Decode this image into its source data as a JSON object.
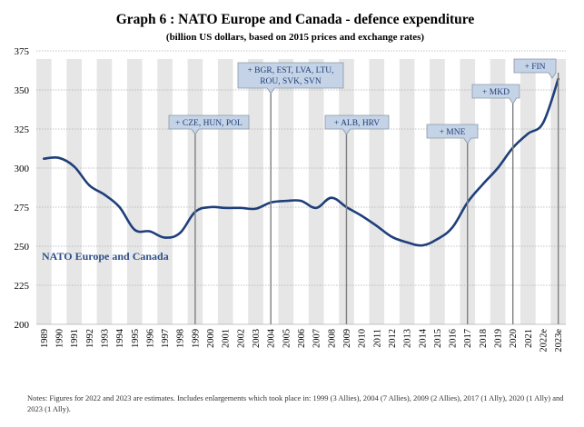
{
  "chart_data": {
    "type": "line",
    "title": "Graph 6 : NATO Europe and Canada - defence expenditure",
    "subtitle": "(billion US dollars, based on 2015 prices and exchange rates)",
    "xlabel": "",
    "ylabel": "",
    "ylim": [
      200,
      375
    ],
    "yticks": [
      "200",
      "225",
      "250",
      "275",
      "300",
      "325",
      "350",
      "375"
    ],
    "categories": [
      "1989",
      "1990",
      "1991",
      "1992",
      "1993",
      "1994",
      "1995",
      "1996",
      "1997",
      "1998",
      "1999",
      "2000",
      "2001",
      "2002",
      "2003",
      "2004",
      "2005",
      "2006",
      "2007",
      "2008",
      "2009",
      "2010",
      "2011",
      "2012",
      "2013",
      "2014",
      "2015",
      "2016",
      "2017",
      "2018",
      "2019",
      "2020",
      "2021",
      "2022e",
      "2023e"
    ],
    "series": [
      {
        "name": "NATO Europe and Canada",
        "color": "#1f3f7a",
        "values": [
          306,
          306.5,
          301,
          289,
          283,
          275,
          260.5,
          259.5,
          255.5,
          258.5,
          272,
          275,
          274.5,
          274.5,
          274,
          278,
          279,
          279,
          274.5,
          281,
          275,
          269.5,
          263,
          256,
          252.5,
          250.5,
          254.5,
          262,
          278,
          289.5,
          300,
          313,
          322,
          329,
          357
        ]
      }
    ],
    "annotations": [
      {
        "lines": [
          "+ CZE, HUN, POL"
        ],
        "year": "1999"
      },
      {
        "lines": [
          "+ BGR, EST, LVA, LTU,",
          "ROU, SVK, SVN"
        ],
        "year": "2004"
      },
      {
        "lines": [
          "+ ALB, HRV"
        ],
        "year": "2009"
      },
      {
        "lines": [
          "+ MNE"
        ],
        "year": "2017"
      },
      {
        "lines": [
          "+ MKD"
        ],
        "year": "2020"
      },
      {
        "lines": [
          "+ FIN"
        ],
        "year": "2023e"
      }
    ],
    "grid": true
  },
  "note": "Notes: Figures for 2022 and 2023 are estimates. Includes enlargements which took place in: 1999 (3 Allies), 2004 (7 Allies), 2009 (2 Allies), 2017 (1 Ally), 2020 (1 Ally) and 2023 (1 Ally).",
  "colors": {
    "line": "#1f3f7a",
    "band": "#e6e6e6",
    "grid": "#b0b0b0",
    "callout_fill": "#c5d3e6",
    "callout_stroke": "#8a96a8",
    "marker": "#7f7f7f"
  }
}
